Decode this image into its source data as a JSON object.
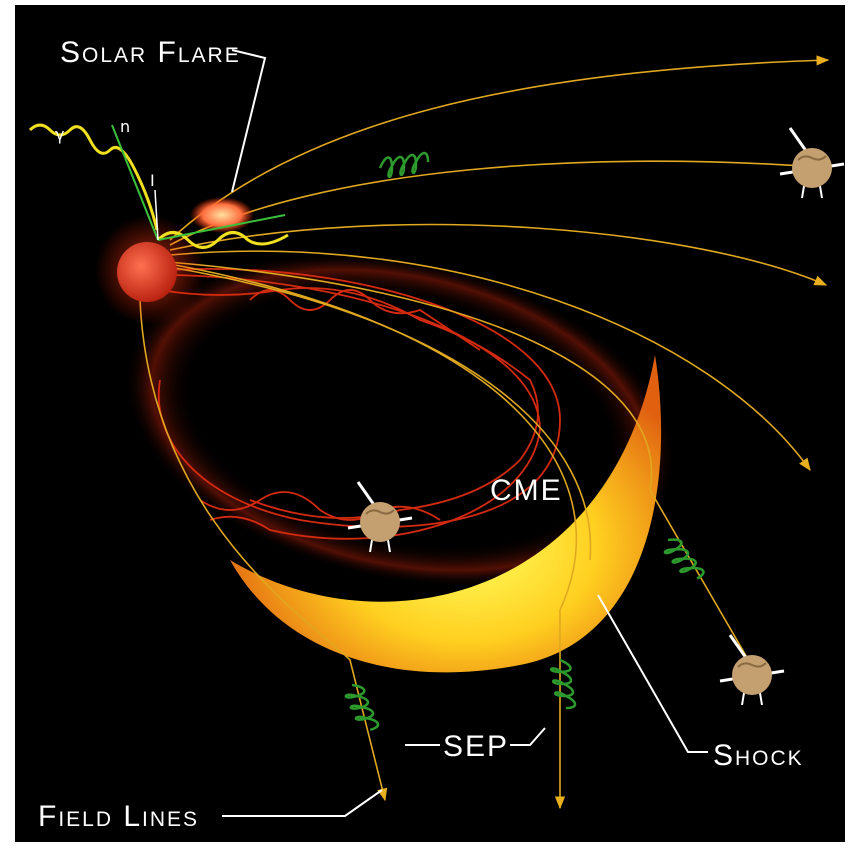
{
  "labels": {
    "solar_flare": "Solar Flare",
    "gamma": "γ",
    "neutron": "n",
    "ion": "I",
    "cme": "CME",
    "sep": "SEP",
    "shock": "Shock",
    "field_lines": "Field Lines"
  }
}
